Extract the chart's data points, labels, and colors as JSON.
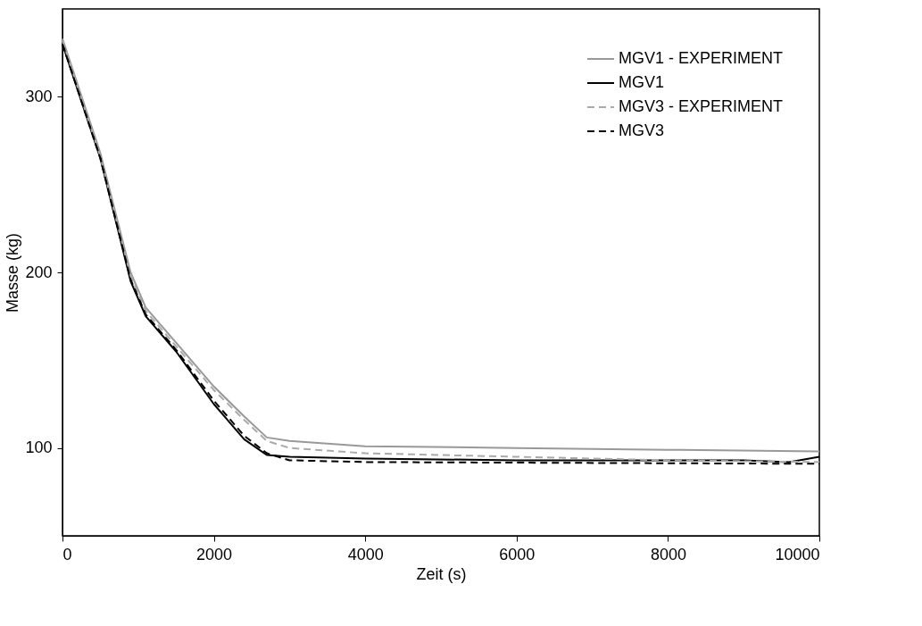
{
  "chart_data": {
    "type": "line",
    "xlabel": "Zeit (s)",
    "ylabel": "Masse (kg)",
    "xlim": [
      0,
      10000
    ],
    "ylim": [
      50,
      350
    ],
    "xticks": [
      0,
      2000,
      4000,
      6000,
      8000,
      10000
    ],
    "yticks": [
      100,
      200,
      300
    ],
    "grid": false,
    "legend": "top right",
    "marker": "none",
    "series": [
      {
        "name": "MGV1 - EXPERIMENT",
        "color": "#999999",
        "line_style": "solid",
        "x": [
          0,
          500,
          900,
          1100,
          1500,
          2000,
          2400,
          2700,
          3000,
          4000,
          6000,
          8000,
          10000
        ],
        "values": [
          333,
          268,
          200,
          180,
          160,
          135,
          118,
          106,
          104,
          101,
          100,
          99,
          98
        ]
      },
      {
        "name": "MGV1",
        "color": "#000000",
        "line_style": "solid",
        "x": [
          0,
          500,
          900,
          1100,
          1500,
          2000,
          2400,
          2700,
          3000,
          4000,
          6000,
          9000,
          9600,
          10000
        ],
        "values": [
          330,
          265,
          195,
          175,
          155,
          125,
          105,
          96,
          95,
          94,
          93,
          93,
          92,
          95
        ]
      },
      {
        "name": "MGV3 - EXPERIMENT",
        "color": "#aaaaaa",
        "line_style": "dashed",
        "x": [
          0,
          500,
          900,
          1100,
          1500,
          2000,
          2400,
          2700,
          3000,
          4000,
          6000,
          8000,
          10000
        ],
        "values": [
          332,
          266,
          198,
          178,
          158,
          133,
          116,
          104,
          100,
          97,
          95,
          93,
          92
        ]
      },
      {
        "name": "MGV3",
        "color": "#000000",
        "line_style": "dashed",
        "x": [
          0,
          500,
          900,
          1100,
          1500,
          2000,
          2400,
          2700,
          3000,
          4000,
          10000
        ],
        "values": [
          330,
          265,
          196,
          176,
          156,
          127,
          107,
          97,
          93,
          92,
          91
        ]
      }
    ]
  }
}
